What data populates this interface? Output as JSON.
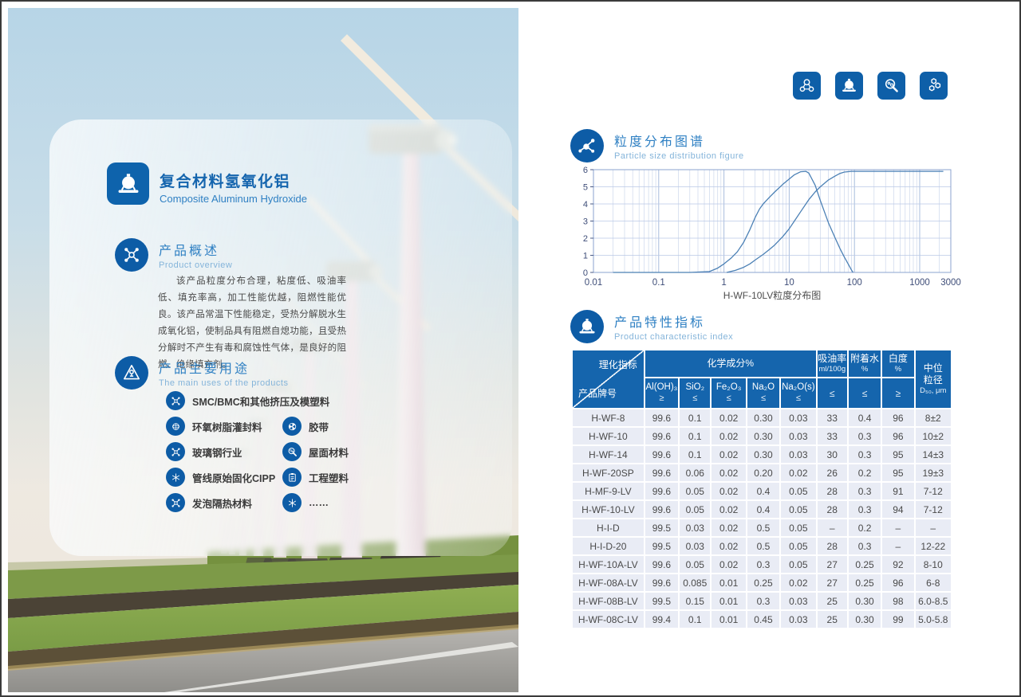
{
  "colors": {
    "primary_blue": "#0e5fa8",
    "header_blue": "#1565ad",
    "section_blue": "#2f80c3",
    "subtitle_blue": "#84b4da",
    "table_row_bg": "#e9ecf5",
    "curve_blue": "#4b80b5"
  },
  "title": {
    "cn": "复合材料氢氧化铝",
    "en": "Composite Aluminum Hydroxide",
    "icon": "tank-icon"
  },
  "overview": {
    "heading_cn": "产品概述",
    "heading_en": "Product overview",
    "icon": "molecule-icon",
    "body": "该产品粒度分布合理，粘度低、吸油率低、填充率高，加工性能优越，阻燃性能优良。该产品常温下性能稳定，受热分解脱水生成氧化铝，使制品具有阻燃自熄功能，且受热分解时不产生有毒和腐蚀性气体，是良好的阻燃、绝缘填充剂。"
  },
  "uses": {
    "heading_cn": "产品主要用途",
    "heading_en": "The main uses of the products",
    "icon": "rocket-icon",
    "items": [
      {
        "label": "SMC/BMC和其他挤压及模塑料",
        "icon": "molecule-icon",
        "full": true
      },
      {
        "label": "环氧树脂灌封料",
        "icon": "globe-icon"
      },
      {
        "label": "胶带",
        "icon": "tape-reel-icon"
      },
      {
        "label": "玻璃钢行业",
        "icon": "molecule-icon"
      },
      {
        "label": "屋面材料",
        "icon": "magnifier-icon"
      },
      {
        "label": "管线原始固化CIPP",
        "icon": "snowflake-icon"
      },
      {
        "label": "工程塑料",
        "icon": "clipboard-icon"
      },
      {
        "label": "发泡隔热材料",
        "icon": "molecule-icon"
      },
      {
        "label": "……",
        "icon": "snowflake-icon"
      }
    ]
  },
  "app_icons": [
    {
      "name": "water-molecule-icon"
    },
    {
      "name": "tank-icon"
    },
    {
      "name": "magnifier-molecule-icon"
    },
    {
      "name": "hexagon-molecules-icon"
    }
  ],
  "chart_section": {
    "heading_cn": "粒度分布图谱",
    "heading_en": "Particle size distribution figure",
    "icon": "molecule-branch-icon"
  },
  "chart_data": {
    "type": "line",
    "caption": "H-WF-10LV粒度分布图",
    "xscale": "log",
    "xlim": [
      0.01,
      3000
    ],
    "ylim": [
      0,
      6
    ],
    "xticks": [
      0.01,
      0.1,
      1,
      10,
      100,
      1000,
      3000
    ],
    "xtick_labels": [
      "0.01",
      "0.1",
      "1",
      "10",
      "100",
      "1000",
      "3000"
    ],
    "yticks": [
      0,
      1,
      2,
      3,
      4,
      5,
      6
    ],
    "grid": true,
    "legend": "none",
    "series": [
      {
        "name": "frequency distribution",
        "points": [
          [
            0.02,
            0
          ],
          [
            0.3,
            0
          ],
          [
            0.6,
            0.05
          ],
          [
            0.8,
            0.25
          ],
          [
            1,
            0.5
          ],
          [
            1.3,
            0.85
          ],
          [
            1.6,
            1.2
          ],
          [
            2,
            1.75
          ],
          [
            2.5,
            2.5
          ],
          [
            3,
            3.2
          ],
          [
            3.5,
            3.7
          ],
          [
            4,
            4.0
          ],
          [
            5,
            4.4
          ],
          [
            6,
            4.7
          ],
          [
            8,
            5.15
          ],
          [
            10,
            5.45
          ],
          [
            12,
            5.7
          ],
          [
            15,
            5.88
          ],
          [
            18,
            5.9
          ],
          [
            20,
            5.8
          ],
          [
            25,
            5.1
          ],
          [
            30,
            4.2
          ],
          [
            35,
            3.5
          ],
          [
            40,
            2.9
          ],
          [
            50,
            2.05
          ],
          [
            60,
            1.4
          ],
          [
            70,
            0.9
          ],
          [
            80,
            0.5
          ],
          [
            90,
            0.15
          ],
          [
            95,
            0
          ]
        ]
      },
      {
        "name": "cumulative distribution",
        "points": [
          [
            1.1,
            0
          ],
          [
            1.5,
            0.12
          ],
          [
            2,
            0.3
          ],
          [
            2.5,
            0.5
          ],
          [
            3,
            0.72
          ],
          [
            4,
            1.05
          ],
          [
            5,
            1.35
          ],
          [
            6,
            1.6
          ],
          [
            8,
            2.1
          ],
          [
            10,
            2.55
          ],
          [
            12,
            3.0
          ],
          [
            15,
            3.55
          ],
          [
            20,
            4.25
          ],
          [
            25,
            4.7
          ],
          [
            30,
            5.0
          ],
          [
            40,
            5.4
          ],
          [
            50,
            5.62
          ],
          [
            60,
            5.78
          ],
          [
            70,
            5.86
          ],
          [
            90,
            5.9
          ],
          [
            200,
            5.9
          ],
          [
            1000,
            5.9
          ],
          [
            2300,
            5.9
          ]
        ]
      }
    ]
  },
  "table_section": {
    "heading_cn": "产品特性指标",
    "heading_en": "Product characteristic index",
    "icon": "tank-icon"
  },
  "table": {
    "corner_top": "理化指标",
    "corner_bottom": "产品牌号",
    "group_header": "化学成分%",
    "chem_columns": [
      {
        "formula": "Al(OH)₃",
        "op": "≥"
      },
      {
        "formula": "SiO₂",
        "op": "≤"
      },
      {
        "formula": "Fe₂O₃",
        "op": "≤"
      },
      {
        "formula": "Na₂O",
        "op": "≤"
      },
      {
        "formula": "Na₂O(s)",
        "op": "≤"
      }
    ],
    "right_columns": [
      {
        "title": "吸油率",
        "unit": "ml/100g",
        "op": "≤"
      },
      {
        "title": "附着水",
        "unit": "%",
        "op": "≤"
      },
      {
        "title": "白度",
        "unit": "%",
        "op": "≥"
      }
    ],
    "last_column": {
      "title_lines": [
        "中位",
        "粒径"
      ],
      "unit": "D₅₀, μm"
    },
    "rows": [
      [
        "H-WF-8",
        "99.6",
        "0.1",
        "0.02",
        "0.30",
        "0.03",
        "33",
        "0.4",
        "96",
        "8±2"
      ],
      [
        "H-WF-10",
        "99.6",
        "0.1",
        "0.02",
        "0.30",
        "0.03",
        "33",
        "0.3",
        "96",
        "10±2"
      ],
      [
        "H-WF-14",
        "99.6",
        "0.1",
        "0.02",
        "0.30",
        "0.03",
        "30",
        "0.3",
        "95",
        "14±3"
      ],
      [
        "H-WF-20SP",
        "99.6",
        "0.06",
        "0.02",
        "0.20",
        "0.02",
        "26",
        "0.2",
        "95",
        "19±3"
      ],
      [
        "H-MF-9-LV",
        "99.6",
        "0.05",
        "0.02",
        "0.4",
        "0.05",
        "28",
        "0.3",
        "91",
        "7-12"
      ],
      [
        "H-WF-10-LV",
        "99.6",
        "0.05",
        "0.02",
        "0.4",
        "0.05",
        "28",
        "0.3",
        "94",
        "7-12"
      ],
      [
        "H-I-D",
        "99.5",
        "0.03",
        "0.02",
        "0.5",
        "0.05",
        "–",
        "0.2",
        "–",
        "–"
      ],
      [
        "H-I-D-20",
        "99.5",
        "0.03",
        "0.02",
        "0.5",
        "0.05",
        "28",
        "0.3",
        "–",
        "12-22"
      ],
      [
        "H-WF-10A-LV",
        "99.6",
        "0.05",
        "0.02",
        "0.3",
        "0.05",
        "27",
        "0.25",
        "92",
        "8-10"
      ],
      [
        "H-WF-08A-LV",
        "99.6",
        "0.085",
        "0.01",
        "0.25",
        "0.02",
        "27",
        "0.25",
        "96",
        "6-8"
      ],
      [
        "H-WF-08B-LV",
        "99.5",
        "0.15",
        "0.01",
        "0.3",
        "0.03",
        "25",
        "0.30",
        "98",
        "6.0-8.5"
      ],
      [
        "H-WF-08C-LV",
        "99.4",
        "0.1",
        "0.01",
        "0.45",
        "0.03",
        "25",
        "0.30",
        "99",
        "5.0-5.8"
      ]
    ]
  }
}
